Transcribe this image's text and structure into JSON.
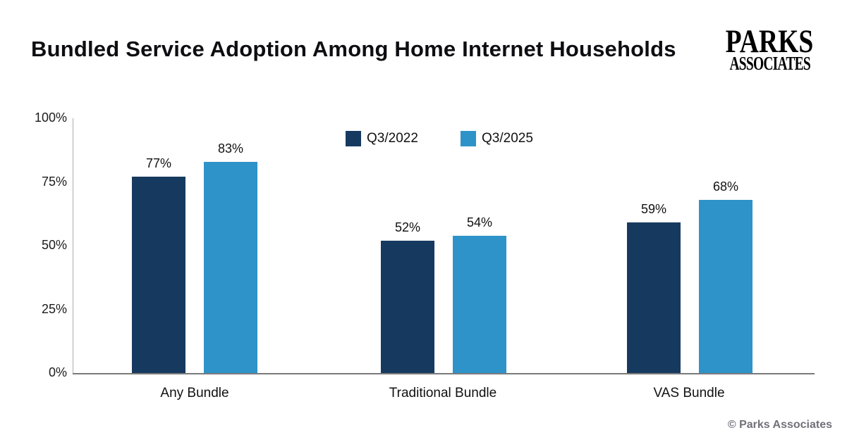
{
  "header": {
    "title": "Bundled Service Adoption Among Home Internet Households",
    "logo_line1": "PARKS",
    "logo_line2": "ASSOCIATES"
  },
  "chart_data": {
    "type": "bar",
    "title": "Bundled Service Adoption Among Home Internet Households",
    "categories": [
      "Any Bundle",
      "Traditional Bundle",
      "VAS Bundle"
    ],
    "series": [
      {
        "name": "Q3/2022",
        "color": "#163A5F",
        "values": [
          77,
          52,
          59
        ],
        "labels": [
          "77%",
          "52%",
          "59%"
        ]
      },
      {
        "name": "Q3/2025",
        "color": "#2E93C9",
        "values": [
          83,
          54,
          68
        ],
        "labels": [
          "83%",
          "54%",
          "68%"
        ]
      }
    ],
    "xlabel": "",
    "ylabel": "",
    "ylim": [
      0,
      100
    ],
    "yticks": [
      {
        "label": "100%",
        "value": 100
      },
      {
        "label": "75%",
        "value": 75
      },
      {
        "label": "50%",
        "value": 50
      },
      {
        "label": "25%",
        "value": 25
      },
      {
        "label": "0%",
        "value": 0
      }
    ],
    "grid": false,
    "legend_position": "top-center"
  },
  "footer": {
    "copyright": "© Parks Associates"
  }
}
